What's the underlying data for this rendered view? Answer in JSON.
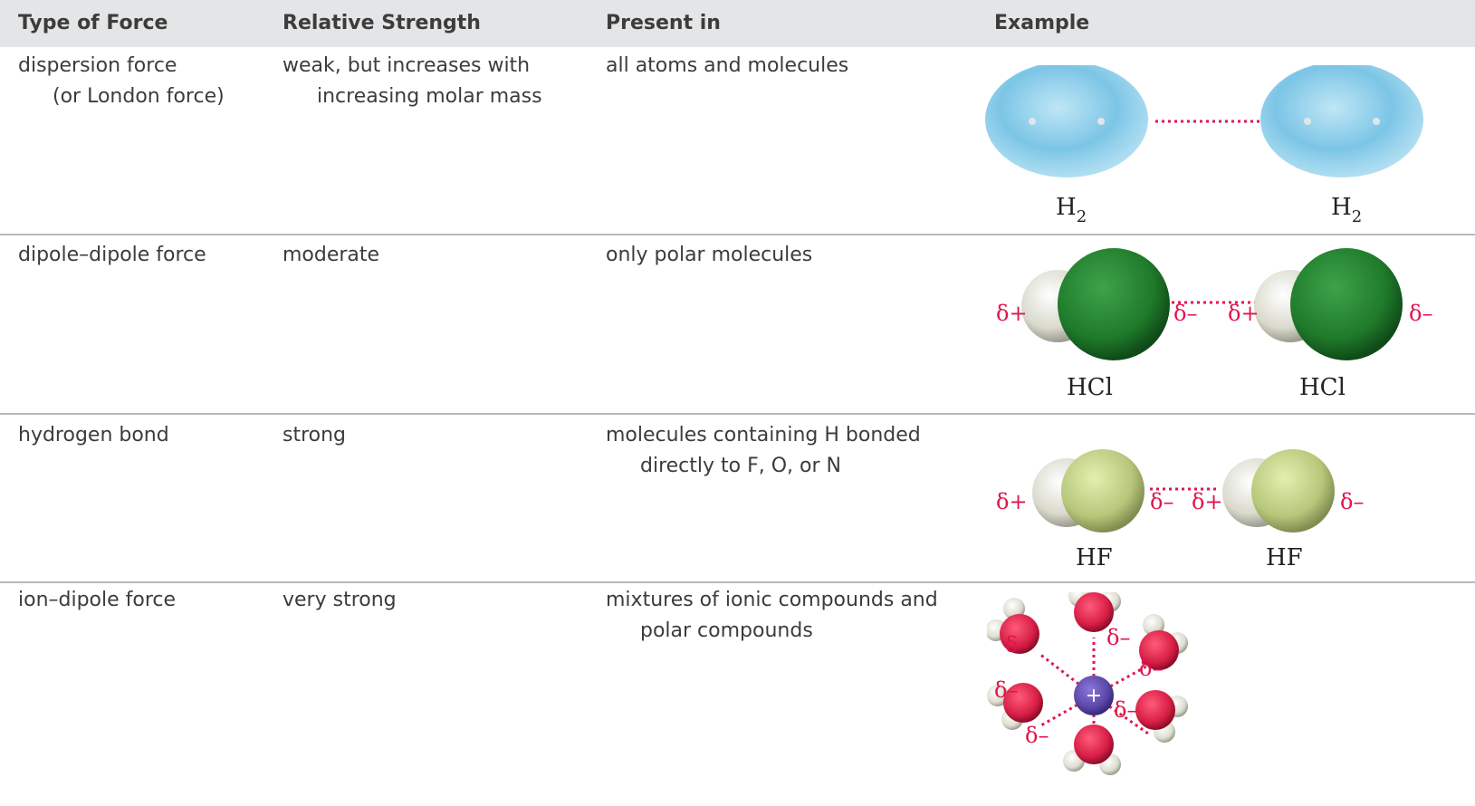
{
  "table": {
    "headers": [
      "Type of Force",
      "Relative Strength",
      "Present in",
      "Example"
    ],
    "rows": [
      {
        "force": "dispersion force",
        "force_note": "(or London force)",
        "strength": "weak, but increases with",
        "strength_cont": "increasing molar mass",
        "present": "all atoms and molecules",
        "present_cont": "",
        "example": {
          "left_label": "H",
          "left_sub": "2",
          "right_label": "H",
          "right_sub": "2"
        }
      },
      {
        "force": "dipole–dipole force",
        "force_note": "",
        "strength": "moderate",
        "strength_cont": "",
        "present": "only polar molecules",
        "present_cont": "",
        "example": {
          "left_label": "HCl",
          "right_label": "HCl",
          "delta_plus": "δ+",
          "delta_minus": "δ–"
        }
      },
      {
        "force": "hydrogen bond",
        "force_note": "",
        "strength": "strong",
        "strength_cont": "",
        "present": "molecules containing H bonded",
        "present_cont": "directly to F, O, or N",
        "example": {
          "left_label": "HF",
          "right_label": "HF",
          "delta_plus": "δ+",
          "delta_minus": "δ–"
        }
      },
      {
        "force": "ion–dipole force",
        "force_note": "",
        "strength": "very strong",
        "strength_cont": "",
        "present": "mixtures of ionic compounds and",
        "present_cont": "polar compounds",
        "example": {
          "ion_charge": "+",
          "delta_minus": "δ–"
        }
      }
    ]
  },
  "colors": {
    "header_bg": "#e4e5e6",
    "divider": "#b7b8ba",
    "delta_text": "#e0154d",
    "h2_cloud": "#7cc5e6",
    "chlorine": "#1f7a2a",
    "fluorine": "#b6c77a",
    "hydrogen": "#e8e8dc",
    "oxygen": "#d81f46",
    "cation": "#5a47a8"
  }
}
